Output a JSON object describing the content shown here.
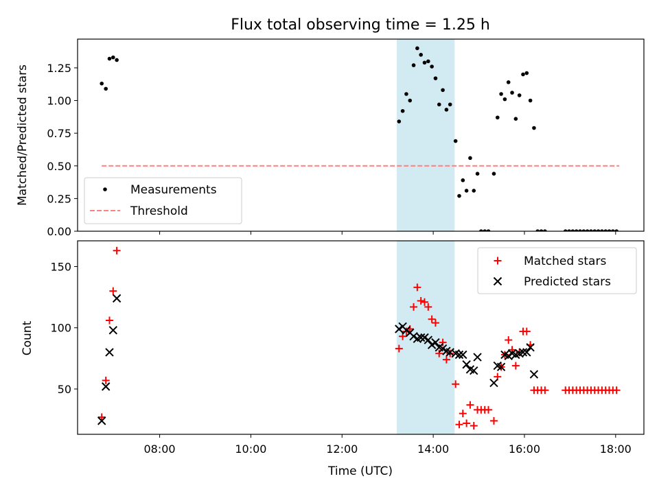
{
  "chart_data": [
    {
      "type": "scatter",
      "panel": "top",
      "title": "Flux total observing time = 1.25 h",
      "ylabel": "Matched/Predicted stars",
      "xlabel": "",
      "xlim": [
        6.2,
        18.62
      ],
      "ylim": [
        0,
        1.47
      ],
      "yticks": [
        {
          "value": 0.0,
          "label": "0.00"
        },
        {
          "value": 0.25,
          "label": "0.25"
        },
        {
          "value": 0.5,
          "label": "0.50"
        },
        {
          "value": 0.75,
          "label": "0.75"
        },
        {
          "value": 1.0,
          "label": "1.00"
        },
        {
          "value": 1.25,
          "label": "1.25"
        }
      ],
      "xticks": [
        8,
        10,
        12,
        14,
        16,
        18
      ],
      "shaded_span": {
        "x_start": 13.2,
        "x_end": 14.47,
        "color": "#add8e6"
      },
      "legend": {
        "placement": "lower-left",
        "measurements_label": "Measurements",
        "threshold_label": "Threshold"
      },
      "threshold": {
        "value": 0.5,
        "x_start": 6.73,
        "x_end": 18.08,
        "color": "#ff7f7f"
      },
      "points": [
        [
          6.73,
          1.13
        ],
        [
          6.82,
          1.09
        ],
        [
          6.9,
          1.32
        ],
        [
          6.98,
          1.33
        ],
        [
          7.06,
          1.31
        ],
        [
          13.25,
          0.84
        ],
        [
          13.33,
          0.92
        ],
        [
          13.41,
          1.05
        ],
        [
          13.49,
          1.0
        ],
        [
          13.57,
          1.27
        ],
        [
          13.65,
          1.4
        ],
        [
          13.73,
          1.35
        ],
        [
          13.81,
          1.29
        ],
        [
          13.89,
          1.3
        ],
        [
          13.97,
          1.26
        ],
        [
          14.05,
          1.17
        ],
        [
          14.13,
          0.97
        ],
        [
          14.21,
          1.08
        ],
        [
          14.29,
          0.93
        ],
        [
          14.37,
          0.97
        ],
        [
          14.49,
          0.69
        ],
        [
          14.57,
          0.27
        ],
        [
          14.65,
          0.39
        ],
        [
          14.73,
          0.31
        ],
        [
          14.81,
          0.56
        ],
        [
          14.89,
          0.31
        ],
        [
          14.97,
          0.44
        ],
        [
          15.05,
          0.0
        ],
        [
          15.13,
          0.0
        ],
        [
          15.21,
          0.0
        ],
        [
          15.33,
          0.44
        ],
        [
          15.41,
          0.87
        ],
        [
          15.49,
          1.05
        ],
        [
          15.57,
          1.01
        ],
        [
          15.65,
          1.14
        ],
        [
          15.73,
          1.06
        ],
        [
          15.81,
          0.86
        ],
        [
          15.89,
          1.04
        ],
        [
          15.97,
          1.2
        ],
        [
          16.05,
          1.21
        ],
        [
          16.13,
          1.0
        ],
        [
          16.21,
          0.79
        ],
        [
          16.29,
          0.0
        ],
        [
          16.37,
          0.0
        ],
        [
          16.45,
          0.0
        ],
        [
          16.9,
          0.0
        ],
        [
          16.98,
          0.0
        ],
        [
          17.06,
          0.0
        ],
        [
          17.14,
          0.0
        ],
        [
          17.22,
          0.0
        ],
        [
          17.3,
          0.0
        ],
        [
          17.38,
          0.0
        ],
        [
          17.46,
          0.0
        ],
        [
          17.54,
          0.0
        ],
        [
          17.62,
          0.0
        ],
        [
          17.7,
          0.0
        ],
        [
          17.78,
          0.0
        ],
        [
          17.86,
          0.0
        ],
        [
          17.94,
          0.0
        ],
        [
          18.02,
          0.0
        ]
      ],
      "colors": {
        "points": "#000000"
      }
    },
    {
      "type": "scatter",
      "panel": "bottom",
      "title": "",
      "xlabel": "Time (UTC)",
      "ylabel": "Count",
      "xlim": [
        6.2,
        18.62
      ],
      "ylim": [
        13,
        171
      ],
      "yticks": [
        {
          "value": 50,
          "label": "50"
        },
        {
          "value": 100,
          "label": "100"
        },
        {
          "value": 150,
          "label": "150"
        }
      ],
      "xticks": [
        {
          "value": 8,
          "label": "08:00"
        },
        {
          "value": 10,
          "label": "10:00"
        },
        {
          "value": 12,
          "label": "12:00"
        },
        {
          "value": 14,
          "label": "14:00"
        },
        {
          "value": 16,
          "label": "16:00"
        },
        {
          "value": 18,
          "label": "18:00"
        }
      ],
      "shaded_span": {
        "x_start": 13.2,
        "x_end": 14.47,
        "color": "#add8e6"
      },
      "legend": {
        "placement": "upper-right"
      },
      "series": [
        {
          "name": "Matched stars",
          "marker": "plus",
          "color": "#ff0000",
          "points": [
            [
              6.73,
              27
            ],
            [
              6.82,
              57
            ],
            [
              6.9,
              106
            ],
            [
              6.98,
              130
            ],
            [
              7.06,
              163
            ],
            [
              13.25,
              83
            ],
            [
              13.33,
              93
            ],
            [
              13.41,
              97
            ],
            [
              13.49,
              99
            ],
            [
              13.57,
              117
            ],
            [
              13.65,
              133
            ],
            [
              13.73,
              122
            ],
            [
              13.81,
              121
            ],
            [
              13.89,
              117
            ],
            [
              13.97,
              107
            ],
            [
              14.05,
              104
            ],
            [
              14.13,
              79
            ],
            [
              14.21,
              88
            ],
            [
              14.29,
              74
            ],
            [
              14.37,
              79
            ],
            [
              14.49,
              54
            ],
            [
              14.57,
              21
            ],
            [
              14.65,
              30
            ],
            [
              14.73,
              22
            ],
            [
              14.81,
              37
            ],
            [
              14.89,
              20
            ],
            [
              14.97,
              33
            ],
            [
              15.05,
              33
            ],
            [
              15.13,
              33
            ],
            [
              15.21,
              33
            ],
            [
              15.33,
              24
            ],
            [
              15.41,
              60
            ],
            [
              15.49,
              68
            ],
            [
              15.57,
              78
            ],
            [
              15.65,
              90
            ],
            [
              15.73,
              82
            ],
            [
              15.81,
              69
            ],
            [
              15.89,
              80
            ],
            [
              15.97,
              97
            ],
            [
              16.05,
              97
            ],
            [
              16.13,
              86
            ],
            [
              16.21,
              49
            ],
            [
              16.29,
              49
            ],
            [
              16.37,
              49
            ],
            [
              16.45,
              49
            ],
            [
              16.9,
              49
            ],
            [
              16.98,
              49
            ],
            [
              17.06,
              49
            ],
            [
              17.14,
              49
            ],
            [
              17.22,
              49
            ],
            [
              17.3,
              49
            ],
            [
              17.38,
              49
            ],
            [
              17.46,
              49
            ],
            [
              17.54,
              49
            ],
            [
              17.62,
              49
            ],
            [
              17.7,
              49
            ],
            [
              17.78,
              49
            ],
            [
              17.86,
              49
            ],
            [
              17.94,
              49
            ],
            [
              18.02,
              49
            ]
          ]
        },
        {
          "name": "Predicted stars",
          "marker": "x",
          "color": "#000000",
          "points": [
            [
              6.73,
              24
            ],
            [
              6.82,
              52
            ],
            [
              6.9,
              80
            ],
            [
              6.98,
              98
            ],
            [
              7.06,
              124
            ],
            [
              13.25,
              99
            ],
            [
              13.33,
              101
            ],
            [
              13.41,
              98
            ],
            [
              13.49,
              96
            ],
            [
              13.57,
              93
            ],
            [
              13.65,
              91
            ],
            [
              13.73,
              92
            ],
            [
              13.81,
              92
            ],
            [
              13.89,
              90
            ],
            [
              13.97,
              86
            ],
            [
              14.05,
              88
            ],
            [
              14.13,
              84
            ],
            [
              14.21,
              83
            ],
            [
              14.29,
              81
            ],
            [
              14.37,
              80
            ],
            [
              14.49,
              79
            ],
            [
              14.57,
              78
            ],
            [
              14.65,
              78
            ],
            [
              14.73,
              70
            ],
            [
              14.81,
              66
            ],
            [
              14.89,
              65
            ],
            [
              14.97,
              76
            ],
            [
              15.33,
              55
            ],
            [
              15.41,
              69
            ],
            [
              15.49,
              68
            ],
            [
              15.57,
              78
            ],
            [
              15.65,
              77
            ],
            [
              15.73,
              79
            ],
            [
              15.81,
              78
            ],
            [
              15.89,
              79
            ],
            [
              15.97,
              80
            ],
            [
              16.05,
              80
            ],
            [
              16.13,
              84
            ],
            [
              16.21,
              62
            ]
          ]
        }
      ]
    }
  ]
}
